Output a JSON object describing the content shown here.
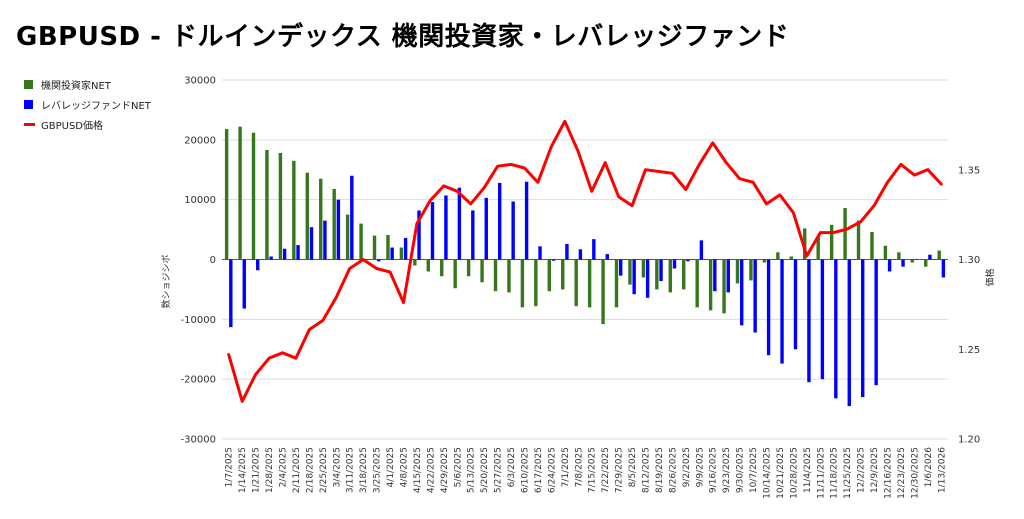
{
  "chart_data": {
    "type": "bar+line",
    "title": "GBPUSD - ドルインデックス 機関投資家・レバレッジファンド",
    "ylabel_left": "数ショジシボ",
    "ylabel_right": "価格",
    "ylim_left": [
      -30000,
      30000
    ],
    "ylim_right": [
      1.2,
      1.4
    ],
    "yticks_left": [
      30000,
      20000,
      10000,
      0,
      -10000,
      -20000,
      -30000
    ],
    "yticks_right": [
      "1.35",
      "1.30",
      "1.25",
      "1.20"
    ],
    "yticks_right_values": [
      1.35,
      1.3,
      1.25,
      1.2
    ],
    "legend": [
      "機関投資家NET",
      "レバレッジファンドNET",
      "GBPUSD価格"
    ],
    "colors": {
      "institutional": "#38761d",
      "leveraged": "#0000ff",
      "price": "#ff0000"
    },
    "categories": [
      "1/7/2025",
      "1/14/2025",
      "1/21/2025",
      "1/28/2025",
      "2/4/2025",
      "2/11/2025",
      "2/18/2025",
      "2/25/2025",
      "3/4/2025",
      "3/11/2025",
      "3/18/2025",
      "3/25/2025",
      "4/1/2025",
      "4/8/2025",
      "4/15/2025",
      "4/22/2025",
      "4/29/2025",
      "5/6/2025",
      "5/13/2025",
      "5/20/2025",
      "5/27/2025",
      "6/3/2025",
      "6/10/2025",
      "6/17/2025",
      "6/24/2025",
      "7/1/2025",
      "7/8/2025",
      "7/15/2025",
      "7/22/2025",
      "7/29/2025",
      "8/5/2025",
      "8/12/2025",
      "8/19/2025",
      "8/26/2025",
      "9/2/2025",
      "9/9/2025",
      "9/16/2025",
      "9/23/2025",
      "9/30/2025",
      "10/7/2025",
      "10/14/2025",
      "10/21/2025",
      "10/28/2025",
      "11/4/2025",
      "11/11/2025",
      "11/18/2025",
      "11/25/2025",
      "12/2/2025",
      "12/9/2025",
      "12/16/2025",
      "12/23/2025",
      "12/30/2025",
      "1/6/2026",
      "1/13/2026"
    ],
    "series": [
      {
        "name": "機関投資家NET",
        "axis": "left",
        "kind": "bar",
        "values": [
          21800,
          22200,
          21200,
          18300,
          17800,
          16500,
          14500,
          13500,
          11800,
          7500,
          6000,
          4000,
          4100,
          2000,
          -1000,
          -2000,
          -2800,
          -4800,
          -2800,
          -3800,
          -5300,
          -5500,
          -8000,
          -7800,
          -5300,
          -5000,
          -7800,
          -8000,
          -10800,
          -8000,
          -4200,
          -3000,
          -5000,
          -5500,
          -5000,
          -8000,
          -8500,
          -9000,
          -4000,
          -3500,
          -500,
          1200,
          500,
          5200,
          3800,
          5800,
          8600,
          6500,
          4600,
          2300,
          1200,
          -500,
          -1200,
          1500
        ]
      },
      {
        "name": "レバレッジファンドNET",
        "axis": "left",
        "kind": "bar",
        "values": [
          -11300,
          -8200,
          -1800,
          500,
          1800,
          2400,
          5400,
          6500,
          10000,
          14000,
          0,
          -300,
          2000,
          3600,
          8200,
          9600,
          10700,
          12000,
          8200,
          10300,
          12800,
          9700,
          13000,
          2200,
          -200,
          2600,
          1700,
          3400,
          900,
          -2700,
          -5800,
          -6400,
          -3600,
          -1500,
          -300,
          3200,
          -5300,
          -5500,
          -11000,
          -12200,
          -16000,
          -17400,
          -15000,
          -20500,
          -20000,
          -23200,
          -24500,
          -23000,
          -21000,
          -2000,
          -1200,
          0,
          800,
          -3000
        ]
      },
      {
        "name": "GBPUSD価格",
        "axis": "right",
        "kind": "line",
        "values": [
          1.247,
          1.221,
          1.236,
          1.245,
          1.248,
          1.245,
          1.261,
          1.266,
          1.279,
          1.295,
          1.3,
          1.295,
          1.293,
          1.276,
          1.32,
          1.333,
          1.341,
          1.338,
          1.331,
          1.34,
          1.352,
          1.353,
          1.351,
          1.343,
          1.363,
          1.377,
          1.36,
          1.338,
          1.354,
          1.335,
          1.33,
          1.35,
          1.349,
          1.348,
          1.339,
          1.353,
          1.365,
          1.354,
          1.345,
          1.343,
          1.331,
          1.336,
          1.326,
          1.302,
          1.315,
          1.315,
          1.317,
          1.321,
          1.33,
          1.343,
          1.353,
          1.347,
          1.35,
          1.342
        ]
      }
    ]
  }
}
